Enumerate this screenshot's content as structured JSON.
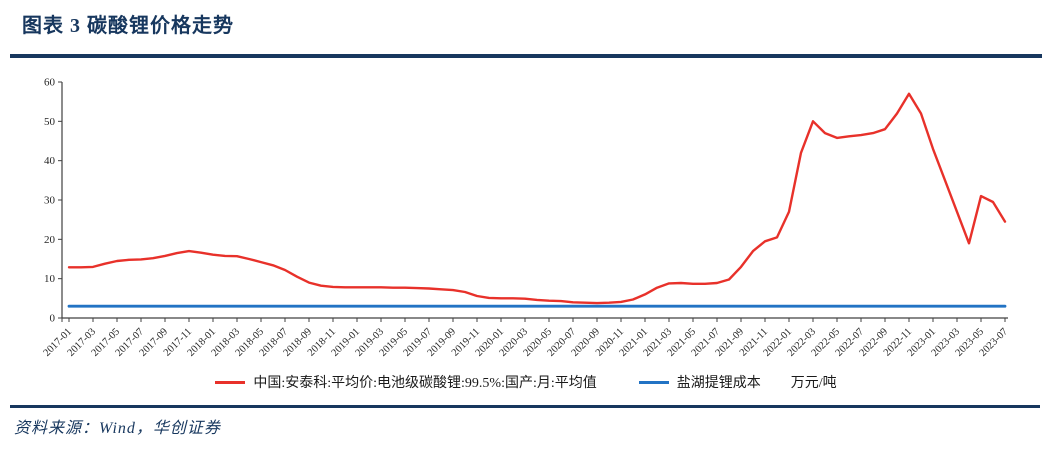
{
  "header": {
    "title": "图表 3  碳酸锂价格走势"
  },
  "colors": {
    "navy": "#17375E",
    "red": "#E8312A",
    "blue": "#2273C4",
    "axis": "#404040",
    "tick_text": "#262626"
  },
  "legend": {
    "items": [
      {
        "key": "red",
        "label": "中国:安泰科:平均价:电池级碳酸锂:99.5%:国产:月:平均值"
      },
      {
        "key": "blue",
        "label": "盐湖提锂成本"
      }
    ],
    "unit": "万元/吨"
  },
  "source": {
    "label": "资料来源：Wind，华创证券"
  },
  "chart_data": {
    "type": "line",
    "title": "碳酸锂价格走势",
    "unit": "万元/吨",
    "ylim": [
      0,
      60
    ],
    "yticks": [
      0,
      10,
      20,
      30,
      40,
      50,
      60
    ],
    "grid": false,
    "legend_position": "bottom",
    "x": [
      "2017-01",
      "2017-02",
      "2017-03",
      "2017-04",
      "2017-05",
      "2017-06",
      "2017-07",
      "2017-08",
      "2017-09",
      "2017-10",
      "2017-11",
      "2017-12",
      "2018-01",
      "2018-02",
      "2018-03",
      "2018-04",
      "2018-05",
      "2018-06",
      "2018-07",
      "2018-08",
      "2018-09",
      "2018-10",
      "2018-11",
      "2018-12",
      "2019-01",
      "2019-02",
      "2019-03",
      "2019-04",
      "2019-05",
      "2019-06",
      "2019-07",
      "2019-08",
      "2019-09",
      "2019-10",
      "2019-11",
      "2019-12",
      "2020-01",
      "2020-02",
      "2020-03",
      "2020-04",
      "2020-05",
      "2020-06",
      "2020-07",
      "2020-08",
      "2020-09",
      "2020-10",
      "2020-11",
      "2020-12",
      "2021-01",
      "2021-02",
      "2021-03",
      "2021-04",
      "2021-05",
      "2021-06",
      "2021-07",
      "2021-08",
      "2021-09",
      "2021-10",
      "2021-11",
      "2021-12",
      "2022-01",
      "2022-02",
      "2022-03",
      "2022-04",
      "2022-05",
      "2022-06",
      "2022-07",
      "2022-08",
      "2022-09",
      "2022-10",
      "2022-11",
      "2022-12",
      "2023-01",
      "2023-02",
      "2023-03",
      "2023-04",
      "2023-05",
      "2023-06",
      "2023-07"
    ],
    "x_tick_labels": [
      "2017-01",
      "2017-03",
      "2017-05",
      "2017-07",
      "2017-09",
      "2017-11",
      "2018-01",
      "2018-03",
      "2018-05",
      "2018-07",
      "2018-09",
      "2018-11",
      "2019-01",
      "2019-03",
      "2019-05",
      "2019-07",
      "2019-09",
      "2019-11",
      "2020-01",
      "2020-03",
      "2020-05",
      "2020-07",
      "2020-09",
      "2020-11",
      "2021-01",
      "2021-03",
      "2021-05",
      "2021-07",
      "2021-09",
      "2021-11",
      "2022-01",
      "2022-03",
      "2022-05",
      "2022-07",
      "2022-09",
      "2022-11",
      "2023-01",
      "2023-03",
      "2023-05",
      "2023-07"
    ],
    "series": [
      {
        "name": "中国:安泰科:平均价:电池级碳酸锂:99.5%:国产:月:平均值",
        "color": "#E8312A",
        "values": [
          12.9,
          12.9,
          13.0,
          13.8,
          14.5,
          14.8,
          14.9,
          15.2,
          15.8,
          16.5,
          17.0,
          16.6,
          16.1,
          15.8,
          15.7,
          15.0,
          14.2,
          13.4,
          12.2,
          10.5,
          9.0,
          8.2,
          7.9,
          7.8,
          7.8,
          7.8,
          7.8,
          7.7,
          7.7,
          7.6,
          7.5,
          7.3,
          7.1,
          6.6,
          5.6,
          5.1,
          5.0,
          5.0,
          4.9,
          4.6,
          4.4,
          4.3,
          4.0,
          3.9,
          3.8,
          3.9,
          4.1,
          4.7,
          6.0,
          7.7,
          8.8,
          8.9,
          8.7,
          8.7,
          8.9,
          9.8,
          13.0,
          17.0,
          19.5,
          20.5,
          27.0,
          42.0,
          50.0,
          47.0,
          45.8,
          46.2,
          46.5,
          47.0,
          48.0,
          52.0,
          57.0,
          52.0,
          43.0,
          35.0,
          27.0,
          19.0,
          31.0,
          29.5,
          24.5
        ]
      },
      {
        "name": "盐湖提锂成本",
        "color": "#2273C4",
        "constant_value": 3
      }
    ]
  }
}
